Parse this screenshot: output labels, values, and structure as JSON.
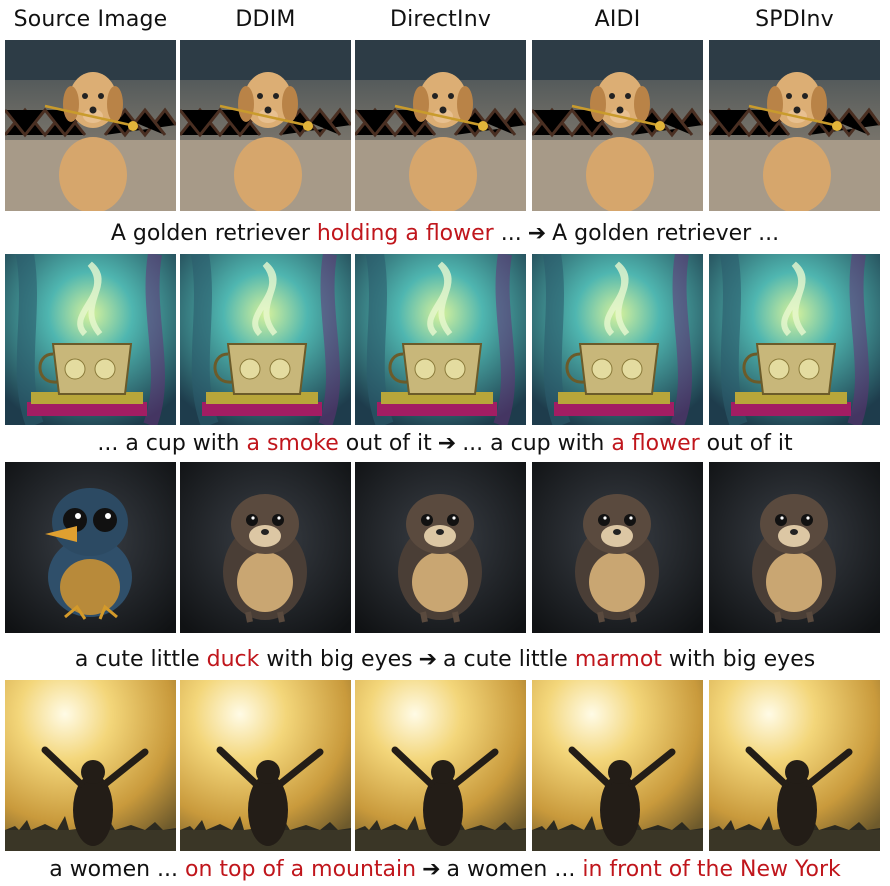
{
  "columns": [
    "Source Image",
    "DDIM",
    "DirectInv",
    "AIDI",
    "SPDInv"
  ],
  "rows": [
    {
      "subject": "golden-retriever",
      "caption": {
        "source_plain_1": "A golden retriever ",
        "source_red": "holding a flower",
        "source_plain_2": " ...",
        "arrow": "➔",
        "target_plain_1": "A golden retriever ...",
        "target_red": "",
        "target_plain_2": ""
      }
    },
    {
      "subject": "cup-with-smoke",
      "caption": {
        "source_plain_1": "... a cup with ",
        "source_red": "a smoke",
        "source_plain_2": " out of it",
        "arrow": "➔",
        "target_plain_1": "... a cup with ",
        "target_red": "a flower",
        "target_plain_2": " out of it"
      }
    },
    {
      "subject": "duck-marmot",
      "caption": {
        "source_plain_1": "a cute little ",
        "source_red": "duck",
        "source_plain_2": " with big eyes",
        "arrow": "➔",
        "target_plain_1": "a cute little ",
        "target_red": "marmot",
        "target_plain_2": " with big eyes"
      }
    },
    {
      "subject": "woman-sunset",
      "caption": {
        "source_plain_1": "a women ... ",
        "source_red": "on top of a mountain",
        "source_plain_2": "",
        "arrow": "➔",
        "target_plain_1": "a women ... ",
        "target_red": "in front of the New York",
        "target_plain_2": ""
      }
    }
  ],
  "colors": {
    "highlight": "#c0161c",
    "text": "#111111"
  }
}
